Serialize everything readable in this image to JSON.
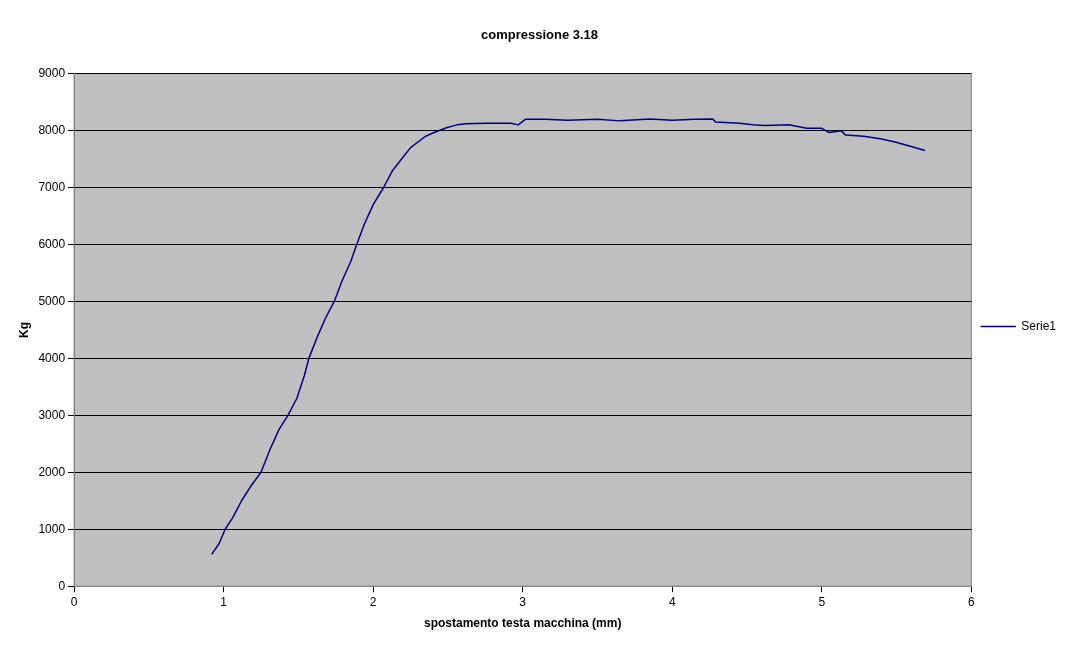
{
  "chart_data": {
    "type": "line",
    "title": "compressione 3.18",
    "xlabel": "spostamento testa macchina (mm)",
    "ylabel": "Kg",
    "xlim": [
      0,
      6
    ],
    "xticks": [
      0,
      1,
      2,
      3,
      4,
      5,
      6
    ],
    "ylim": [
      0,
      9000
    ],
    "yticks": [
      0,
      1000,
      2000,
      3000,
      4000,
      5000,
      6000,
      7000,
      8000,
      9000
    ],
    "grid": "y",
    "legend": "right",
    "marker": "none",
    "line_style": "solid",
    "series": [
      {
        "name": "Serie1",
        "color": "#000080",
        "x": [
          0.92,
          0.97,
          1.01,
          1.06,
          1.12,
          1.18,
          1.25,
          1.31,
          1.37,
          1.43,
          1.49,
          1.54,
          1.57,
          1.63,
          1.68,
          1.74,
          1.79,
          1.85,
          1.89,
          1.94,
          2.0,
          2.07,
          2.13,
          2.19,
          2.25,
          2.35,
          2.42,
          2.49,
          2.56,
          2.62,
          2.75,
          2.92,
          2.97,
          3.02,
          3.15,
          3.3,
          3.5,
          3.65,
          3.85,
          4.0,
          4.15,
          4.27,
          4.29,
          4.45,
          4.54,
          4.62,
          4.78,
          4.9,
          5.0,
          5.05,
          5.13,
          5.16,
          5.28,
          5.4,
          5.49,
          5.61,
          5.69
        ],
        "values": [
          558,
          750,
          1000,
          1200,
          1500,
          1750,
          2000,
          2400,
          2750,
          3000,
          3300,
          3700,
          4000,
          4400,
          4700,
          5000,
          5350,
          5700,
          6000,
          6350,
          6700,
          7000,
          7300,
          7500,
          7700,
          7900,
          7980,
          8050,
          8100,
          8120,
          8130,
          8130,
          8100,
          8200,
          8200,
          8180,
          8200,
          8170,
          8205,
          8180,
          8200,
          8205,
          8150,
          8130,
          8100,
          8090,
          8100,
          8040,
          8040,
          7965,
          7995,
          7920,
          7900,
          7850,
          7800,
          7710,
          7650
        ]
      }
    ]
  }
}
